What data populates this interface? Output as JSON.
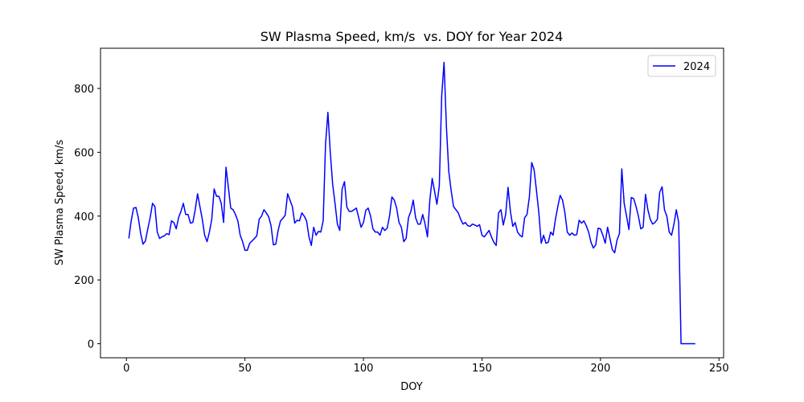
{
  "chart_data": {
    "type": "line",
    "title": "SW Plasma Speed, km/s  vs. DOY for Year 2024",
    "xlabel": "DOY",
    "ylabel": "SW Plasma Speed, km/s",
    "x": [
      1,
      2,
      3,
      4,
      5,
      6,
      7,
      8,
      9,
      10,
      11,
      12,
      13,
      14,
      15,
      16,
      17,
      18,
      19,
      20,
      21,
      22,
      23,
      24,
      25,
      26,
      27,
      28,
      29,
      30,
      31,
      32,
      33,
      34,
      35,
      36,
      37,
      38,
      39,
      40,
      41,
      42,
      43,
      44,
      45,
      46,
      47,
      48,
      49,
      50,
      51,
      52,
      53,
      54,
      55,
      56,
      57,
      58,
      59,
      60,
      61,
      62,
      63,
      64,
      65,
      66,
      67,
      68,
      69,
      70,
      71,
      72,
      73,
      74,
      75,
      76,
      77,
      78,
      79,
      80,
      81,
      82,
      83,
      84,
      85,
      86,
      87,
      88,
      89,
      90,
      91,
      92,
      93,
      94,
      95,
      96,
      97,
      98,
      99,
      100,
      101,
      102,
      103,
      104,
      105,
      106,
      107,
      108,
      109,
      110,
      111,
      112,
      113,
      114,
      115,
      116,
      117,
      118,
      119,
      120,
      121,
      122,
      123,
      124,
      125,
      126,
      127,
      128,
      129,
      130,
      131,
      132,
      133,
      134,
      135,
      136,
      137,
      138,
      139,
      140,
      141,
      142,
      143,
      144,
      145,
      146,
      147,
      148,
      149,
      150,
      151,
      152,
      153,
      154,
      155,
      156,
      157,
      158,
      159,
      160,
      161,
      162,
      163,
      164,
      165,
      166,
      167,
      168,
      169,
      170,
      171,
      172,
      173,
      174,
      175,
      176,
      177,
      178,
      179,
      180,
      181,
      182,
      183,
      184,
      185,
      186,
      187,
      188,
      189,
      190,
      191,
      192,
      193,
      194,
      195,
      196,
      197,
      198,
      199,
      200,
      201,
      202,
      203,
      204,
      205,
      206,
      207,
      208,
      209,
      210,
      211,
      212,
      213,
      214,
      215,
      216,
      217,
      218,
      219,
      220,
      221,
      222,
      223,
      224,
      225,
      226,
      227,
      228,
      229,
      230,
      231,
      232,
      233,
      234,
      235,
      236,
      237,
      238,
      239,
      240
    ],
    "series": [
      {
        "name": "2024",
        "color": "#0000ff",
        "values": [
          330,
          385,
          425,
          427,
          395,
          345,
          312,
          322,
          360,
          395,
          440,
          430,
          350,
          330,
          335,
          338,
          345,
          342,
          385,
          380,
          360,
          395,
          415,
          440,
          405,
          405,
          378,
          380,
          420,
          470,
          430,
          390,
          340,
          320,
          350,
          390,
          485,
          462,
          462,
          440,
          380,
          553,
          490,
          425,
          420,
          405,
          385,
          340,
          320,
          293,
          293,
          315,
          322,
          330,
          338,
          390,
          400,
          420,
          410,
          398,
          370,
          310,
          312,
          355,
          385,
          393,
          403,
          470,
          450,
          430,
          378,
          387,
          385,
          410,
          400,
          385,
          335,
          308,
          365,
          340,
          352,
          350,
          385,
          625,
          725,
          600,
          500,
          440,
          375,
          355,
          485,
          508,
          428,
          415,
          415,
          420,
          425,
          395,
          365,
          380,
          418,
          425,
          400,
          360,
          350,
          350,
          340,
          365,
          355,
          362,
          400,
          460,
          450,
          425,
          380,
          365,
          320,
          330,
          395,
          415,
          450,
          395,
          375,
          375,
          405,
          375,
          335,
          450,
          518,
          478,
          437,
          495,
          775,
          882,
          680,
          540,
          480,
          430,
          420,
          410,
          390,
          375,
          380,
          370,
          368,
          375,
          372,
          368,
          373,
          340,
          335,
          345,
          355,
          335,
          318,
          308,
          410,
          420,
          372,
          405,
          490,
          415,
          368,
          380,
          350,
          340,
          335,
          395,
          405,
          460,
          568,
          545,
          480,
          410,
          315,
          340,
          315,
          318,
          350,
          340,
          390,
          430,
          465,
          450,
          410,
          350,
          340,
          347,
          340,
          342,
          387,
          378,
          385,
          370,
          350,
          318,
          300,
          310,
          362,
          360,
          340,
          315,
          365,
          330,
          295,
          285,
          325,
          345,
          548,
          440,
          400,
          358,
          458,
          455,
          430,
          400,
          360,
          365,
          468,
          420,
          390,
          375,
          380,
          390,
          475,
          492,
          420,
          400,
          350,
          340,
          375,
          420,
          380,
          0,
          0,
          0,
          0,
          0,
          0,
          0
        ]
      }
    ],
    "xlim": [
      -10.95,
      251.95
    ],
    "xticks": [
      0,
      50,
      100,
      150,
      200,
      250
    ],
    "ylim": [
      -44,
      926
    ],
    "yticks": [
      0,
      200,
      400,
      600,
      800
    ],
    "grid": false,
    "legend": "upper right"
  }
}
